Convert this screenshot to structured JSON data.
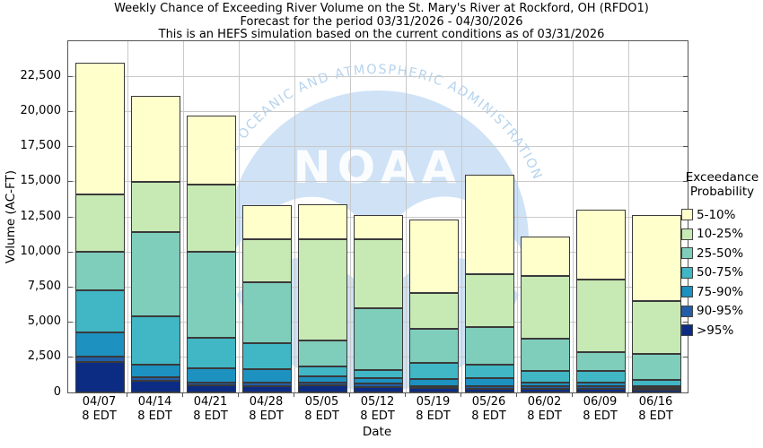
{
  "title": {
    "line1": "Weekly Chance of Exceeding River Volume on the St. Mary's River at Rockford, OH (RFDO1)",
    "line2": "Forecast for the period 03/31/2026 - 04/30/2026",
    "line3": "This is an HEFS simulation based on the current conditions as of 03/31/2026"
  },
  "y_axis": {
    "label": "Volume (AC-FT)",
    "tick_labels": [
      "0",
      "2,500",
      "5,000",
      "7,500",
      "10,000",
      "12,500",
      "15,000",
      "17,500",
      "20,000",
      "22,500"
    ],
    "tick_values": [
      0,
      2500,
      5000,
      7500,
      10000,
      12500,
      15000,
      17500,
      20000,
      22500
    ]
  },
  "x_axis": {
    "label": "Date"
  },
  "legend": {
    "title_line1": "Exceedance",
    "title_line2": "Probability",
    "entries": [
      {
        "label": "5-10%",
        "color": "#ffffcc"
      },
      {
        "label": "10-25%",
        "color": "#c7e9b4"
      },
      {
        "label": "25-50%",
        "color": "#7fcdbb"
      },
      {
        "label": "50-75%",
        "color": "#41b6c4"
      },
      {
        "label": "75-90%",
        "color": "#1d91c0"
      },
      {
        "label": "90-95%",
        "color": "#225ea8"
      },
      {
        "label": ">95%",
        "color": "#0c2c84"
      }
    ]
  },
  "watermark": {
    "logo_text": "NOAA",
    "arc_text": "NATIONAL OCEANIC AND ATMOSPHERIC ADMINISTRATION",
    "circle_color": "#cfe2f6",
    "text_color": "#b7d4ee"
  },
  "chart_data": {
    "type": "bar",
    "stacked": true,
    "title": "Weekly Chance of Exceeding River Volume on the St. Mary's River at Rockford, OH (RFDO1)",
    "subtitle": "Forecast for the period 03/31/2026 - 04/30/2026",
    "note": "This is an HEFS simulation based on the current conditions as of 03/31/2026",
    "xlabel": "Date",
    "ylabel": "Volume (AC-FT)",
    "ylim": [
      0,
      25000
    ],
    "grid": true,
    "legend_position": "right",
    "categories": [
      "04/07 8 EDT",
      "04/14 8 EDT",
      "04/21 8 EDT",
      "04/28 8 EDT",
      "05/05 8 EDT",
      "05/12 8 EDT",
      "05/19 8 EDT",
      "05/26 8 EDT",
      "06/02 8 EDT",
      "06/09 8 EDT",
      "06/16 8 EDT"
    ],
    "series_order_note": "bottom-to-top stacking; values are segment sizes in AC-FT",
    "series": [
      {
        "name": ">95%",
        "color": "#0c2c84",
        "values": [
          2200,
          850,
          525,
          475,
          500,
          400,
          300,
          250,
          250,
          250,
          175
        ]
      },
      {
        "name": "90-95%",
        "color": "#225ea8",
        "values": [
          350,
          250,
          175,
          250,
          200,
          225,
          175,
          225,
          175,
          200,
          125
        ]
      },
      {
        "name": "75-90%",
        "color": "#1d91c0",
        "values": [
          1750,
          900,
          1050,
          925,
          450,
          375,
          475,
          525,
          275,
          250,
          150
        ]
      },
      {
        "name": "50-75%",
        "color": "#41b6c4",
        "values": [
          2950,
          3400,
          2150,
          1850,
          700,
          600,
          1150,
          1000,
          850,
          800,
          450
        ]
      },
      {
        "name": "25-50%",
        "color": "#7fcdbb",
        "values": [
          2750,
          6000,
          6100,
          4350,
          1850,
          4400,
          2400,
          2650,
          2300,
          1350,
          1850
        ]
      },
      {
        "name": "10-25%",
        "color": "#c7e9b4",
        "values": [
          4100,
          3600,
          4800,
          3050,
          7200,
          4900,
          2550,
          3750,
          4450,
          5200,
          3750
        ]
      },
      {
        "name": "5-10%",
        "color": "#ffffcc",
        "values": [
          9400,
          6100,
          4900,
          2400,
          2500,
          1700,
          5250,
          7100,
          2800,
          4950,
          6100
        ]
      }
    ],
    "totals": [
      23500,
      21100,
      19700,
      13300,
      13400,
      12600,
      12300,
      15500,
      11100,
      13000,
      12600
    ]
  }
}
